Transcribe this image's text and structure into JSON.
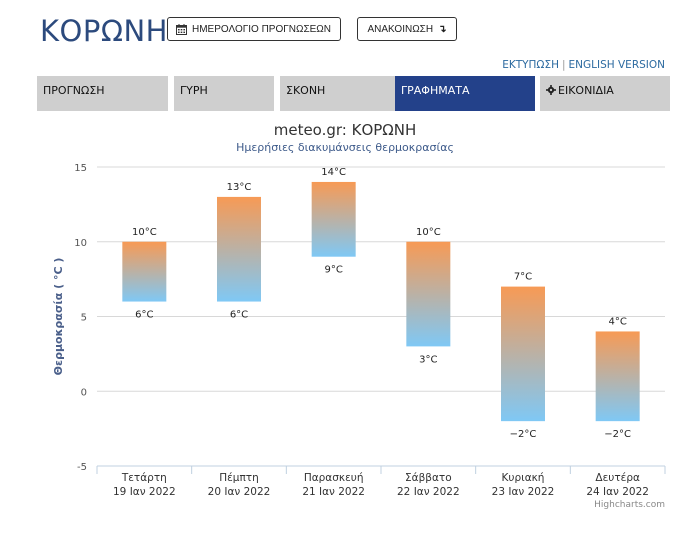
{
  "header": {
    "city": "ΚΟΡΩΝΗ",
    "calendar_button": "ΗΜΕΡΟΛΟΓΙΟ ΠΡΟΓΝΩΣΕΩΝ",
    "announce_button": "ΑΝΑΚΟΙΝΩΣΗ",
    "announce_icon": "↴",
    "print_link": "ΕΚΤΥΠΩΣΗ",
    "link_separator": "|",
    "english_link": "ENGLISH VERSION"
  },
  "tabs": [
    {
      "label": "ΠΡΟΓΝΩΣΗ",
      "active": false
    },
    {
      "label": "ΓΥΡΗ",
      "active": false
    },
    {
      "label": "ΣΚΟΝΗ",
      "active": false
    },
    {
      "label": "ΓΡΑΦΗΜΑΤΑ",
      "active": true
    },
    {
      "label": "ΕΙΚΟΝΙΔΙΑ",
      "active": false,
      "icon": "gear-icon"
    }
  ],
  "colors": {
    "accent": "#23418a",
    "bar_top": "#f79a55",
    "bar_bottom": "#7fc8f5",
    "title": "#333333",
    "subtitle": "#3d5a8a"
  },
  "chart_data": {
    "type": "columnrange",
    "title": "meteo.gr: ΚΟΡΩΝΗ",
    "subtitle": "Ημερήσιες διακυμάνσεις θερμοκρασίας",
    "ylabel": "Θερμοκρασία ( °C )",
    "ylim": [
      -5,
      15
    ],
    "yticks": [
      "-5",
      "0",
      "5",
      "10",
      "15"
    ],
    "grid": true,
    "unit": "°C",
    "categories": [
      {
        "day": "Τετάρτη",
        "date": "19 Ιαν 2022"
      },
      {
        "day": "Πέμπτη",
        "date": "20 Ιαν 2022"
      },
      {
        "day": "Παρασκευή",
        "date": "21 Ιαν 2022"
      },
      {
        "day": "Σάββατο",
        "date": "22 Ιαν 2022"
      },
      {
        "day": "Κυριακή",
        "date": "23 Ιαν 2022"
      },
      {
        "day": "Δευτέρα",
        "date": "24 Ιαν 2022"
      }
    ],
    "ranges": [
      {
        "low": 6,
        "high": 10,
        "low_label": "6°C",
        "high_label": "10°C"
      },
      {
        "low": 6,
        "high": 13,
        "low_label": "6°C",
        "high_label": "13°C"
      },
      {
        "low": 9,
        "high": 14,
        "low_label": "9°C",
        "high_label": "14°C"
      },
      {
        "low": 3,
        "high": 10,
        "low_label": "3°C",
        "high_label": "10°C"
      },
      {
        "low": -2,
        "high": 7,
        "low_label": "−2°C",
        "high_label": "7°C"
      },
      {
        "low": -2,
        "high": 4,
        "low_label": "−2°C",
        "high_label": "4°C"
      }
    ],
    "credit": "Highcharts.com"
  }
}
